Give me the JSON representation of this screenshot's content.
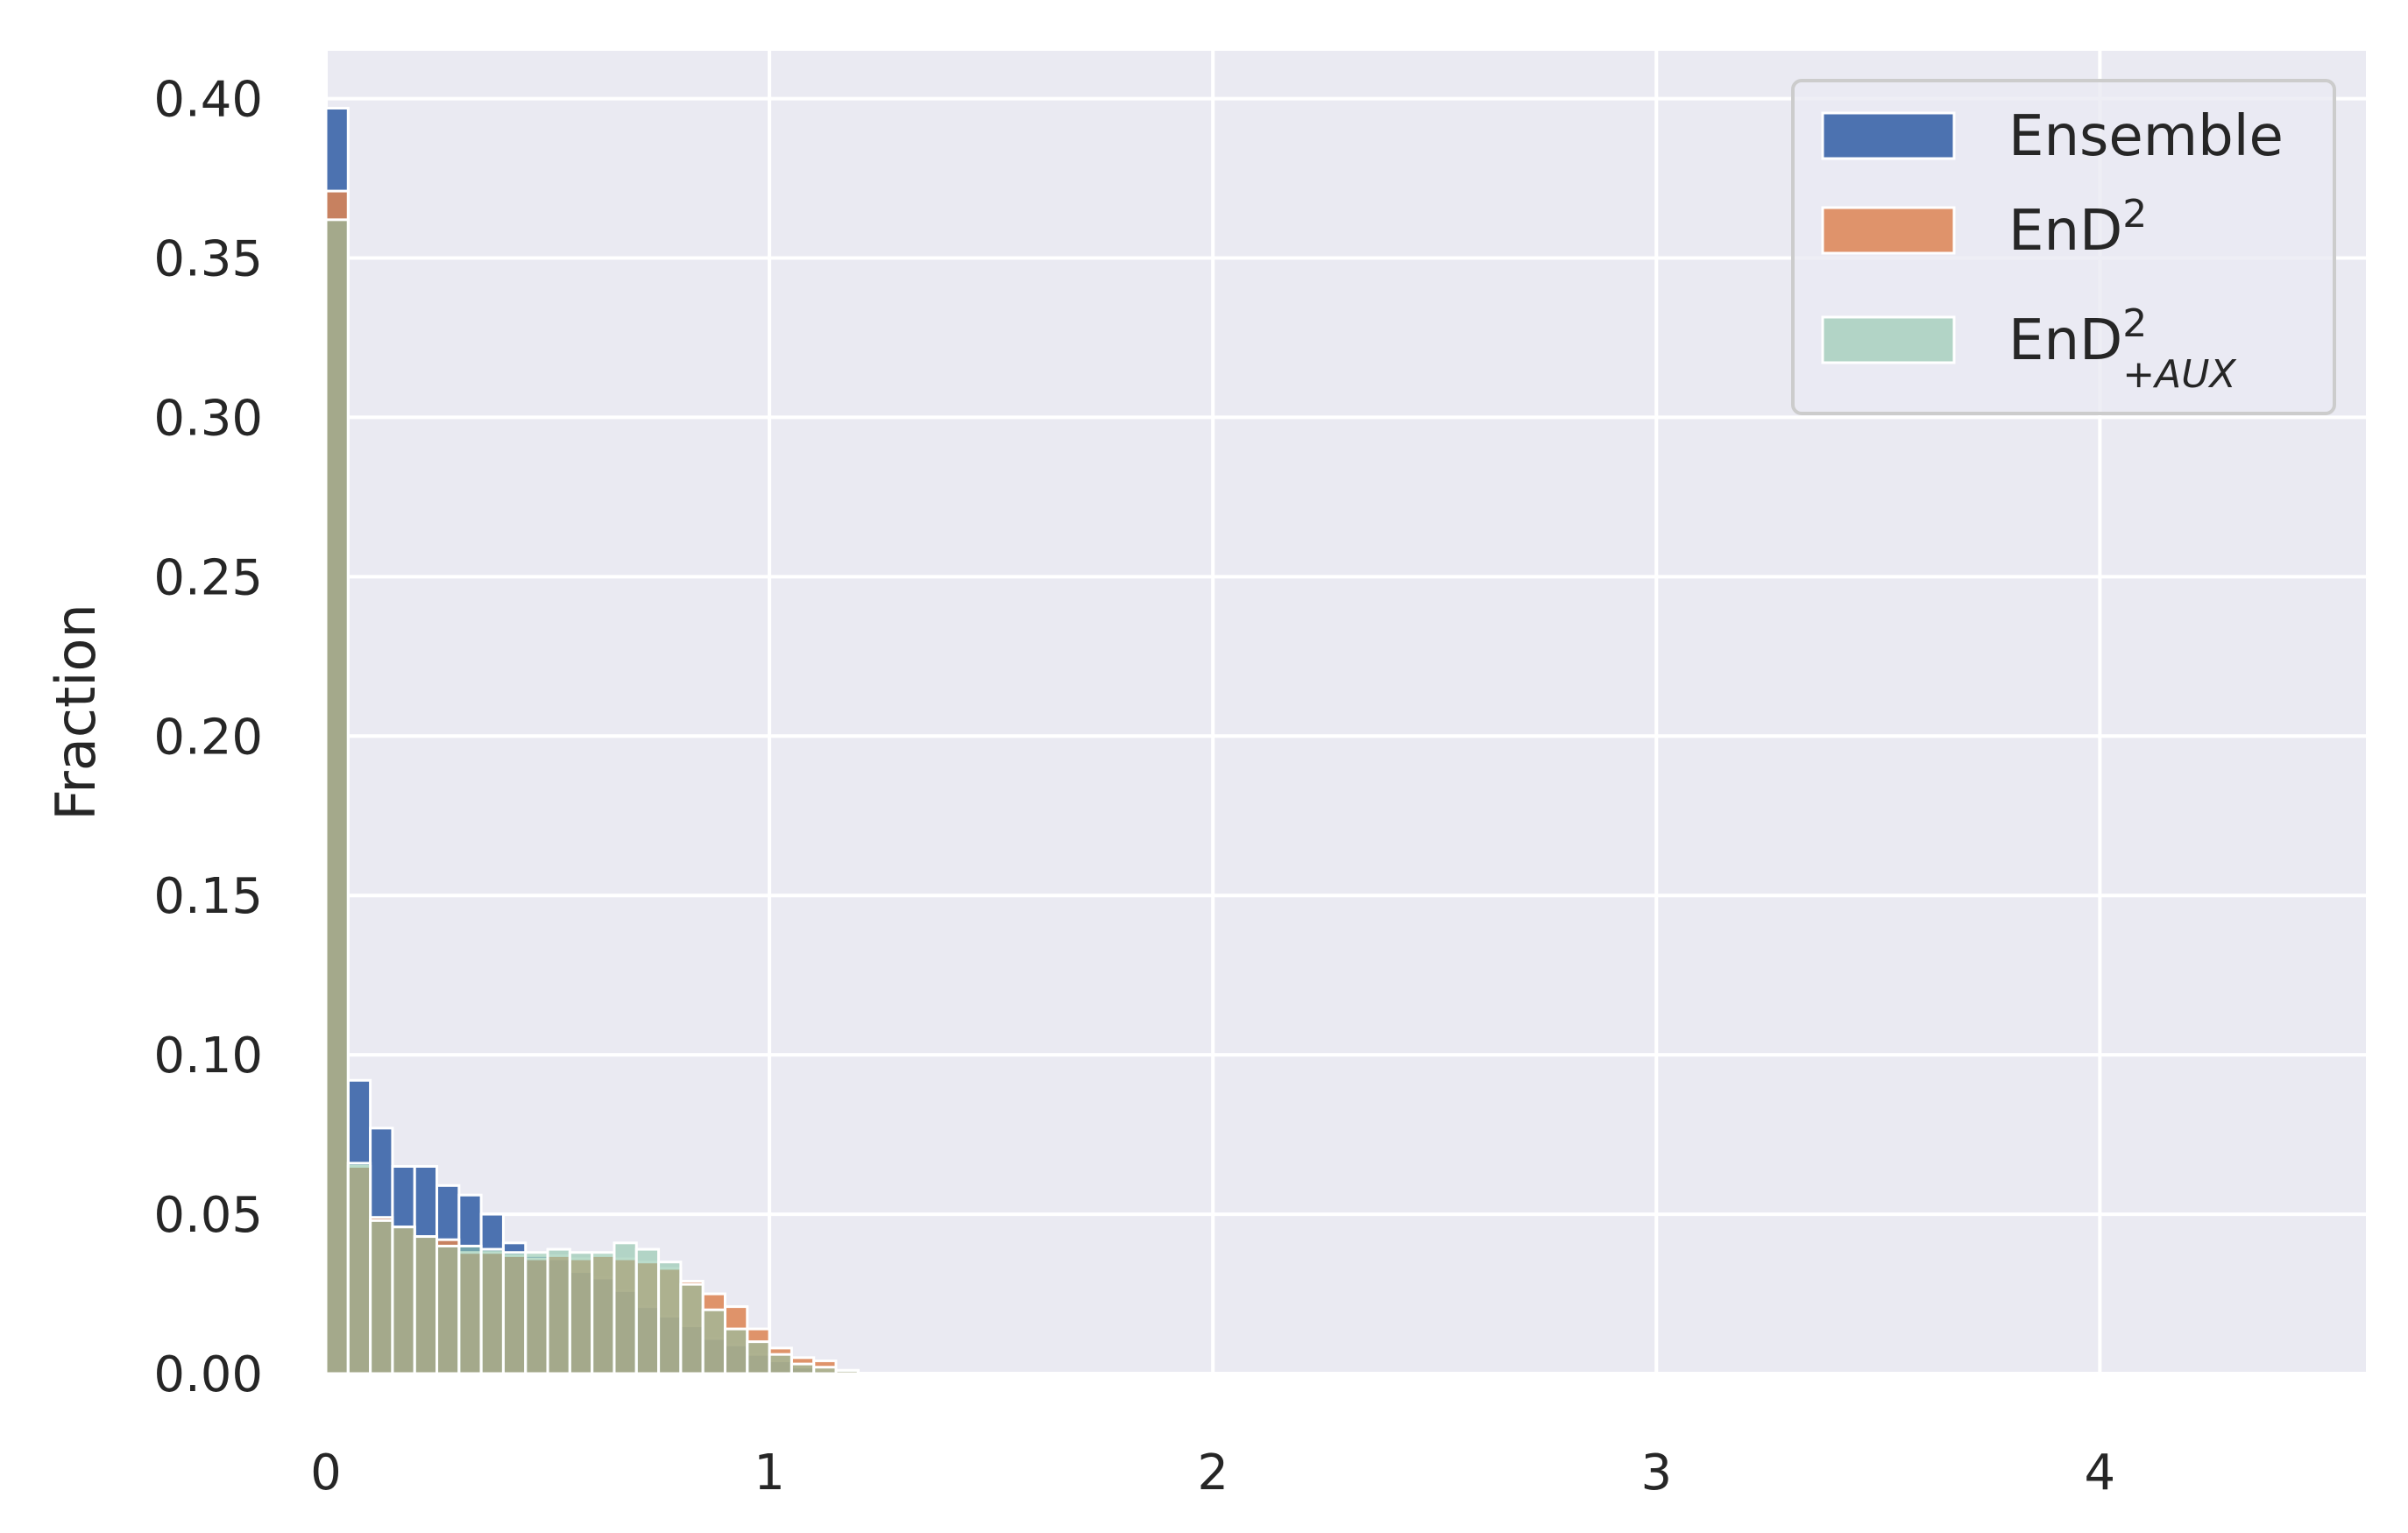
{
  "chart_data": {
    "type": "bar",
    "title": "",
    "xlabel": "",
    "ylabel": "Fraction",
    "xlim": [
      0,
      4.6
    ],
    "ylim": [
      0,
      0.415
    ],
    "x_ticks": [
      "0",
      "1",
      "2",
      "3",
      "4"
    ],
    "y_ticks": [
      "0.00",
      "0.05",
      "0.10",
      "0.15",
      "0.20",
      "0.25",
      "0.30",
      "0.35",
      "0.40"
    ],
    "grid": true,
    "legend_position": "top-right",
    "bin_width": 0.05,
    "bin_starts": [
      0.0,
      0.05,
      0.1,
      0.15,
      0.2,
      0.25,
      0.3,
      0.35,
      0.4,
      0.45,
      0.5,
      0.55,
      0.6,
      0.65,
      0.7,
      0.75,
      0.8,
      0.85,
      0.9,
      0.95,
      1.0,
      1.05,
      1.1,
      1.15,
      1.2
    ],
    "series": [
      {
        "name": "Ensemble",
        "color": "#4c72b0",
        "opacity": 1.0,
        "values": [
          0.397,
          0.092,
          0.077,
          0.065,
          0.065,
          0.059,
          0.056,
          0.05,
          0.041,
          0.037,
          0.036,
          0.032,
          0.03,
          0.026,
          0.021,
          0.018,
          0.015,
          0.011,
          0.009,
          0.006,
          0.004,
          0.002,
          0.001,
          0.0005,
          0.0
        ]
      },
      {
        "name": "EnD2",
        "label_base": "EnD",
        "label_sup": "2",
        "label_sub": "",
        "color": "#dd8452",
        "opacity": 0.85,
        "values": [
          0.371,
          0.065,
          0.049,
          0.046,
          0.043,
          0.042,
          0.038,
          0.038,
          0.037,
          0.036,
          0.037,
          0.036,
          0.037,
          0.036,
          0.035,
          0.033,
          0.029,
          0.025,
          0.021,
          0.014,
          0.008,
          0.005,
          0.004,
          0.001,
          0.0
        ]
      },
      {
        "name": "EnD2+AUX",
        "label_base": "EnD",
        "label_sup": "2",
        "label_sub": "+AUX",
        "color": "#8cc5a8",
        "opacity": 0.6,
        "values": [
          0.362,
          0.066,
          0.048,
          0.046,
          0.043,
          0.04,
          0.04,
          0.039,
          0.038,
          0.038,
          0.039,
          0.038,
          0.038,
          0.041,
          0.039,
          0.035,
          0.028,
          0.02,
          0.014,
          0.01,
          0.006,
          0.003,
          0.002,
          0.001,
          0.0
        ]
      }
    ]
  }
}
